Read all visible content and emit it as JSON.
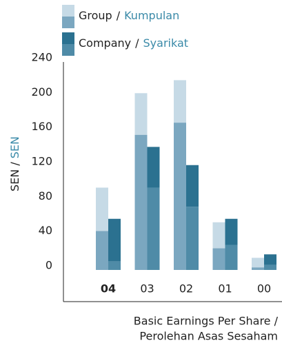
{
  "chart_data": {
    "type": "bar",
    "categories": [
      "04",
      "03",
      "02",
      "01",
      "00"
    ],
    "series": [
      {
        "name": "Group",
        "name_alt": "Kumpulan",
        "colors": [
          "#7ba7c0",
          "#c6dae6"
        ],
        "values": [
          [
            45,
            50
          ],
          [
            156,
            48
          ],
          [
            170,
            49
          ],
          [
            25,
            30
          ],
          [
            3,
            11
          ]
        ]
      },
      {
        "name": "Company",
        "name_alt": "Syarikat",
        "colors": [
          "#4f8ba7",
          "#2b7190"
        ],
        "values": [
          [
            10,
            49
          ],
          [
            95,
            47
          ],
          [
            73,
            48
          ],
          [
            29,
            30
          ],
          [
            6,
            12
          ]
        ]
      }
    ],
    "legend_separator": "/",
    "ylabel": "SEN /",
    "ylabel_alt": "SEN",
    "xlabel": "Basic Earnings Per Share /",
    "xlabel_alt": "Perolehan Asas Sesaham",
    "alt_color": "#3a8aa8",
    "ylim": [
      0,
      240
    ],
    "yticks": [
      0,
      40,
      80,
      120,
      160,
      200,
      240
    ]
  }
}
